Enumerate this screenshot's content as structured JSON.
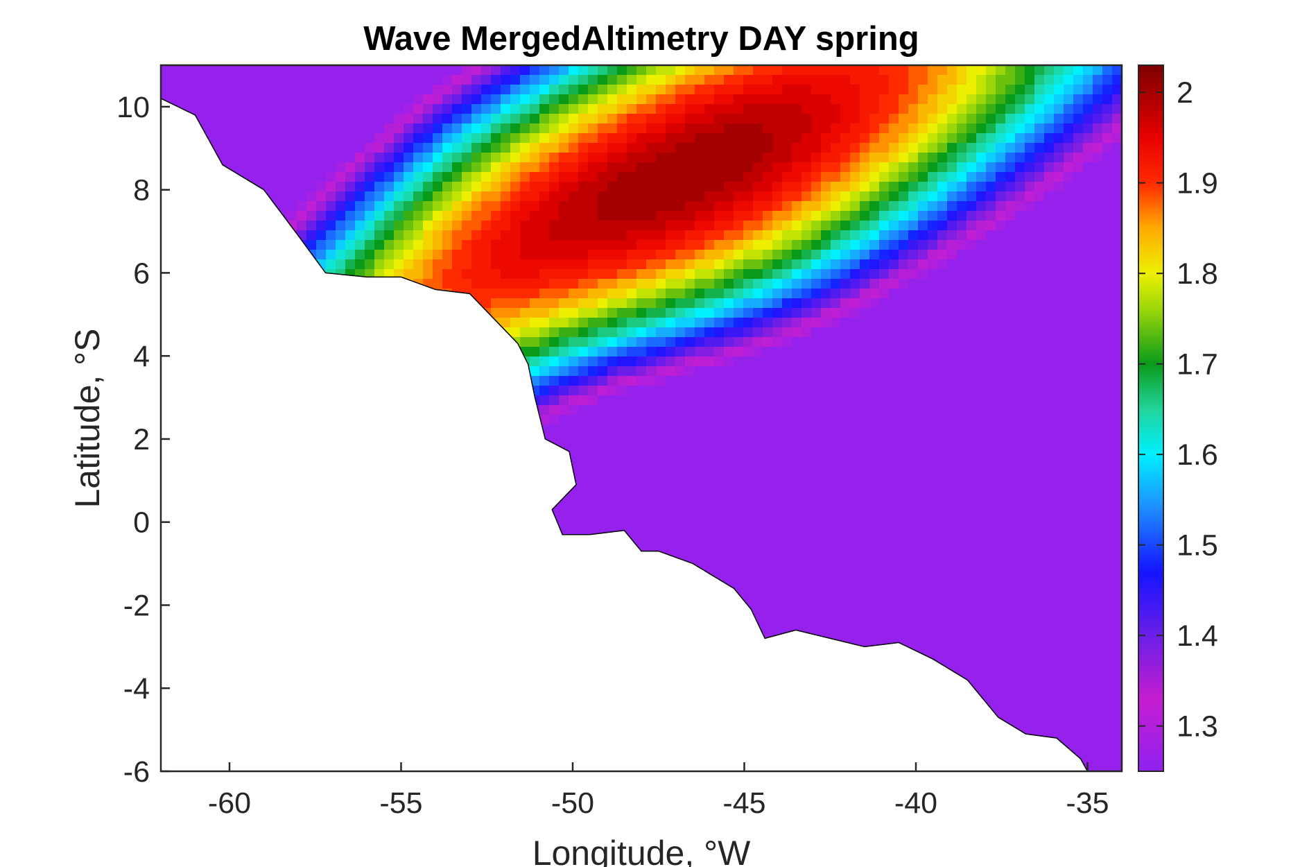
{
  "map": {
    "title": "Wave MergedAltimetry DAY spring",
    "xlabel": "Longitude, °W",
    "ylabel": "Latitude, °S",
    "x_range": [
      -62,
      -34
    ],
    "y_range": [
      -6,
      11
    ],
    "x_ticks": [
      {
        "value": -60,
        "label": "-60"
      },
      {
        "value": -55,
        "label": "-55"
      },
      {
        "value": -50,
        "label": "-50"
      },
      {
        "value": -45,
        "label": "-45"
      },
      {
        "value": -40,
        "label": "-40"
      },
      {
        "value": -35,
        "label": "-35"
      }
    ],
    "y_ticks": [
      {
        "value": -6,
        "label": "-6"
      },
      {
        "value": -4,
        "label": "-4"
      },
      {
        "value": -2,
        "label": "-2"
      },
      {
        "value": 0,
        "label": "0"
      },
      {
        "value": 2,
        "label": "2"
      },
      {
        "value": 4,
        "label": "4"
      },
      {
        "value": 6,
        "label": "6"
      },
      {
        "value": 8,
        "label": "8"
      },
      {
        "value": 10,
        "label": "10"
      }
    ],
    "field": {
      "peak_center": [
        -47.5,
        8.0
      ],
      "peak_value": 2.02,
      "min_value": 1.3,
      "contour_step": 0.02
    },
    "colorbar": {
      "range": [
        1.25,
        2.03
      ],
      "ticks": [
        {
          "value": 1.3,
          "label": "1.3"
        },
        {
          "value": 1.4,
          "label": "1.4"
        },
        {
          "value": 1.5,
          "label": "1.5"
        },
        {
          "value": 1.6,
          "label": "1.6"
        },
        {
          "value": 1.7,
          "label": "1.7"
        },
        {
          "value": 1.8,
          "label": "1.8"
        },
        {
          "value": 1.9,
          "label": "1.9"
        },
        {
          "value": 2.0,
          "label": "2"
        }
      ],
      "colormap_stops": [
        {
          "v": 1.25,
          "color": "#8f21f0"
        },
        {
          "v": 1.33,
          "color": "#c51ed0"
        },
        {
          "v": 1.4,
          "color": "#6a1ee8"
        },
        {
          "v": 1.47,
          "color": "#1414ff"
        },
        {
          "v": 1.54,
          "color": "#1e8cff"
        },
        {
          "v": 1.6,
          "color": "#00f0ff"
        },
        {
          "v": 1.65,
          "color": "#22d49a"
        },
        {
          "v": 1.7,
          "color": "#0a9a1a"
        },
        {
          "v": 1.76,
          "color": "#9ad60a"
        },
        {
          "v": 1.8,
          "color": "#ecf000"
        },
        {
          "v": 1.85,
          "color": "#ffaa00"
        },
        {
          "v": 1.9,
          "color": "#ff2a00"
        },
        {
          "v": 1.95,
          "color": "#e80000"
        },
        {
          "v": 2.03,
          "color": "#7d0000"
        }
      ]
    },
    "coastline": [
      [
        -62,
        10.2
      ],
      [
        -61,
        9.8
      ],
      [
        -60.2,
        8.6
      ],
      [
        -59,
        8.0
      ],
      [
        -58,
        6.9
      ],
      [
        -57.2,
        6.0
      ],
      [
        -56,
        5.9
      ],
      [
        -55,
        5.9
      ],
      [
        -54,
        5.6
      ],
      [
        -53,
        5.5
      ],
      [
        -52.3,
        4.9
      ],
      [
        -51.6,
        4.3
      ],
      [
        -51.3,
        3.8
      ],
      [
        -51.1,
        3.0
      ],
      [
        -50.8,
        2.0
      ],
      [
        -50.1,
        1.7
      ],
      [
        -49.9,
        0.9
      ],
      [
        -50.6,
        0.3
      ],
      [
        -50.3,
        -0.3
      ],
      [
        -49.5,
        -0.3
      ],
      [
        -48.5,
        -0.2
      ],
      [
        -48.0,
        -0.7
      ],
      [
        -47.5,
        -0.7
      ],
      [
        -46.5,
        -1.0
      ],
      [
        -45.3,
        -1.6
      ],
      [
        -44.8,
        -2.1
      ],
      [
        -44.4,
        -2.8
      ],
      [
        -43.5,
        -2.6
      ],
      [
        -42.5,
        -2.8
      ],
      [
        -41.5,
        -3.0
      ],
      [
        -40.5,
        -2.9
      ],
      [
        -39.5,
        -3.3
      ],
      [
        -38.5,
        -3.8
      ],
      [
        -37.6,
        -4.7
      ],
      [
        -36.8,
        -5.1
      ],
      [
        -35.9,
        -5.2
      ],
      [
        -35.2,
        -5.7
      ],
      [
        -35.0,
        -6.0
      ]
    ]
  }
}
